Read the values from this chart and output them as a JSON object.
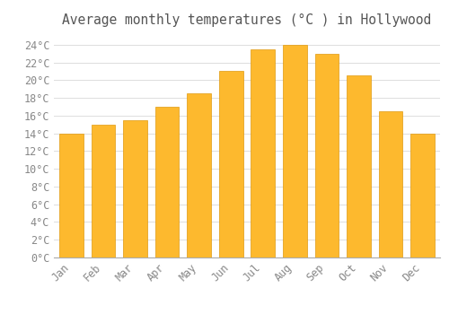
{
  "title": "Average monthly temperatures (°C ) in Hollywood",
  "months": [
    "Jan",
    "Feb",
    "Mar",
    "Apr",
    "May",
    "Jun",
    "Jul",
    "Aug",
    "Sep",
    "Oct",
    "Nov",
    "Dec"
  ],
  "temperatures": [
    14.0,
    15.0,
    15.5,
    17.0,
    18.5,
    21.0,
    23.5,
    24.0,
    23.0,
    20.5,
    16.5,
    14.0
  ],
  "bar_color_top": "#FDB92E",
  "bar_color_bottom": "#F5A623",
  "bar_edge_color": "#E09A10",
  "background_color": "#FFFFFF",
  "grid_color": "#DDDDDD",
  "text_color": "#888888",
  "title_color": "#555555",
  "ylim": [
    0,
    25.5
  ],
  "yticks": [
    0,
    2,
    4,
    6,
    8,
    10,
    12,
    14,
    16,
    18,
    20,
    22,
    24
  ],
  "title_fontsize": 10.5,
  "tick_fontsize": 8.5,
  "font_family": "monospace",
  "bar_width": 0.75
}
